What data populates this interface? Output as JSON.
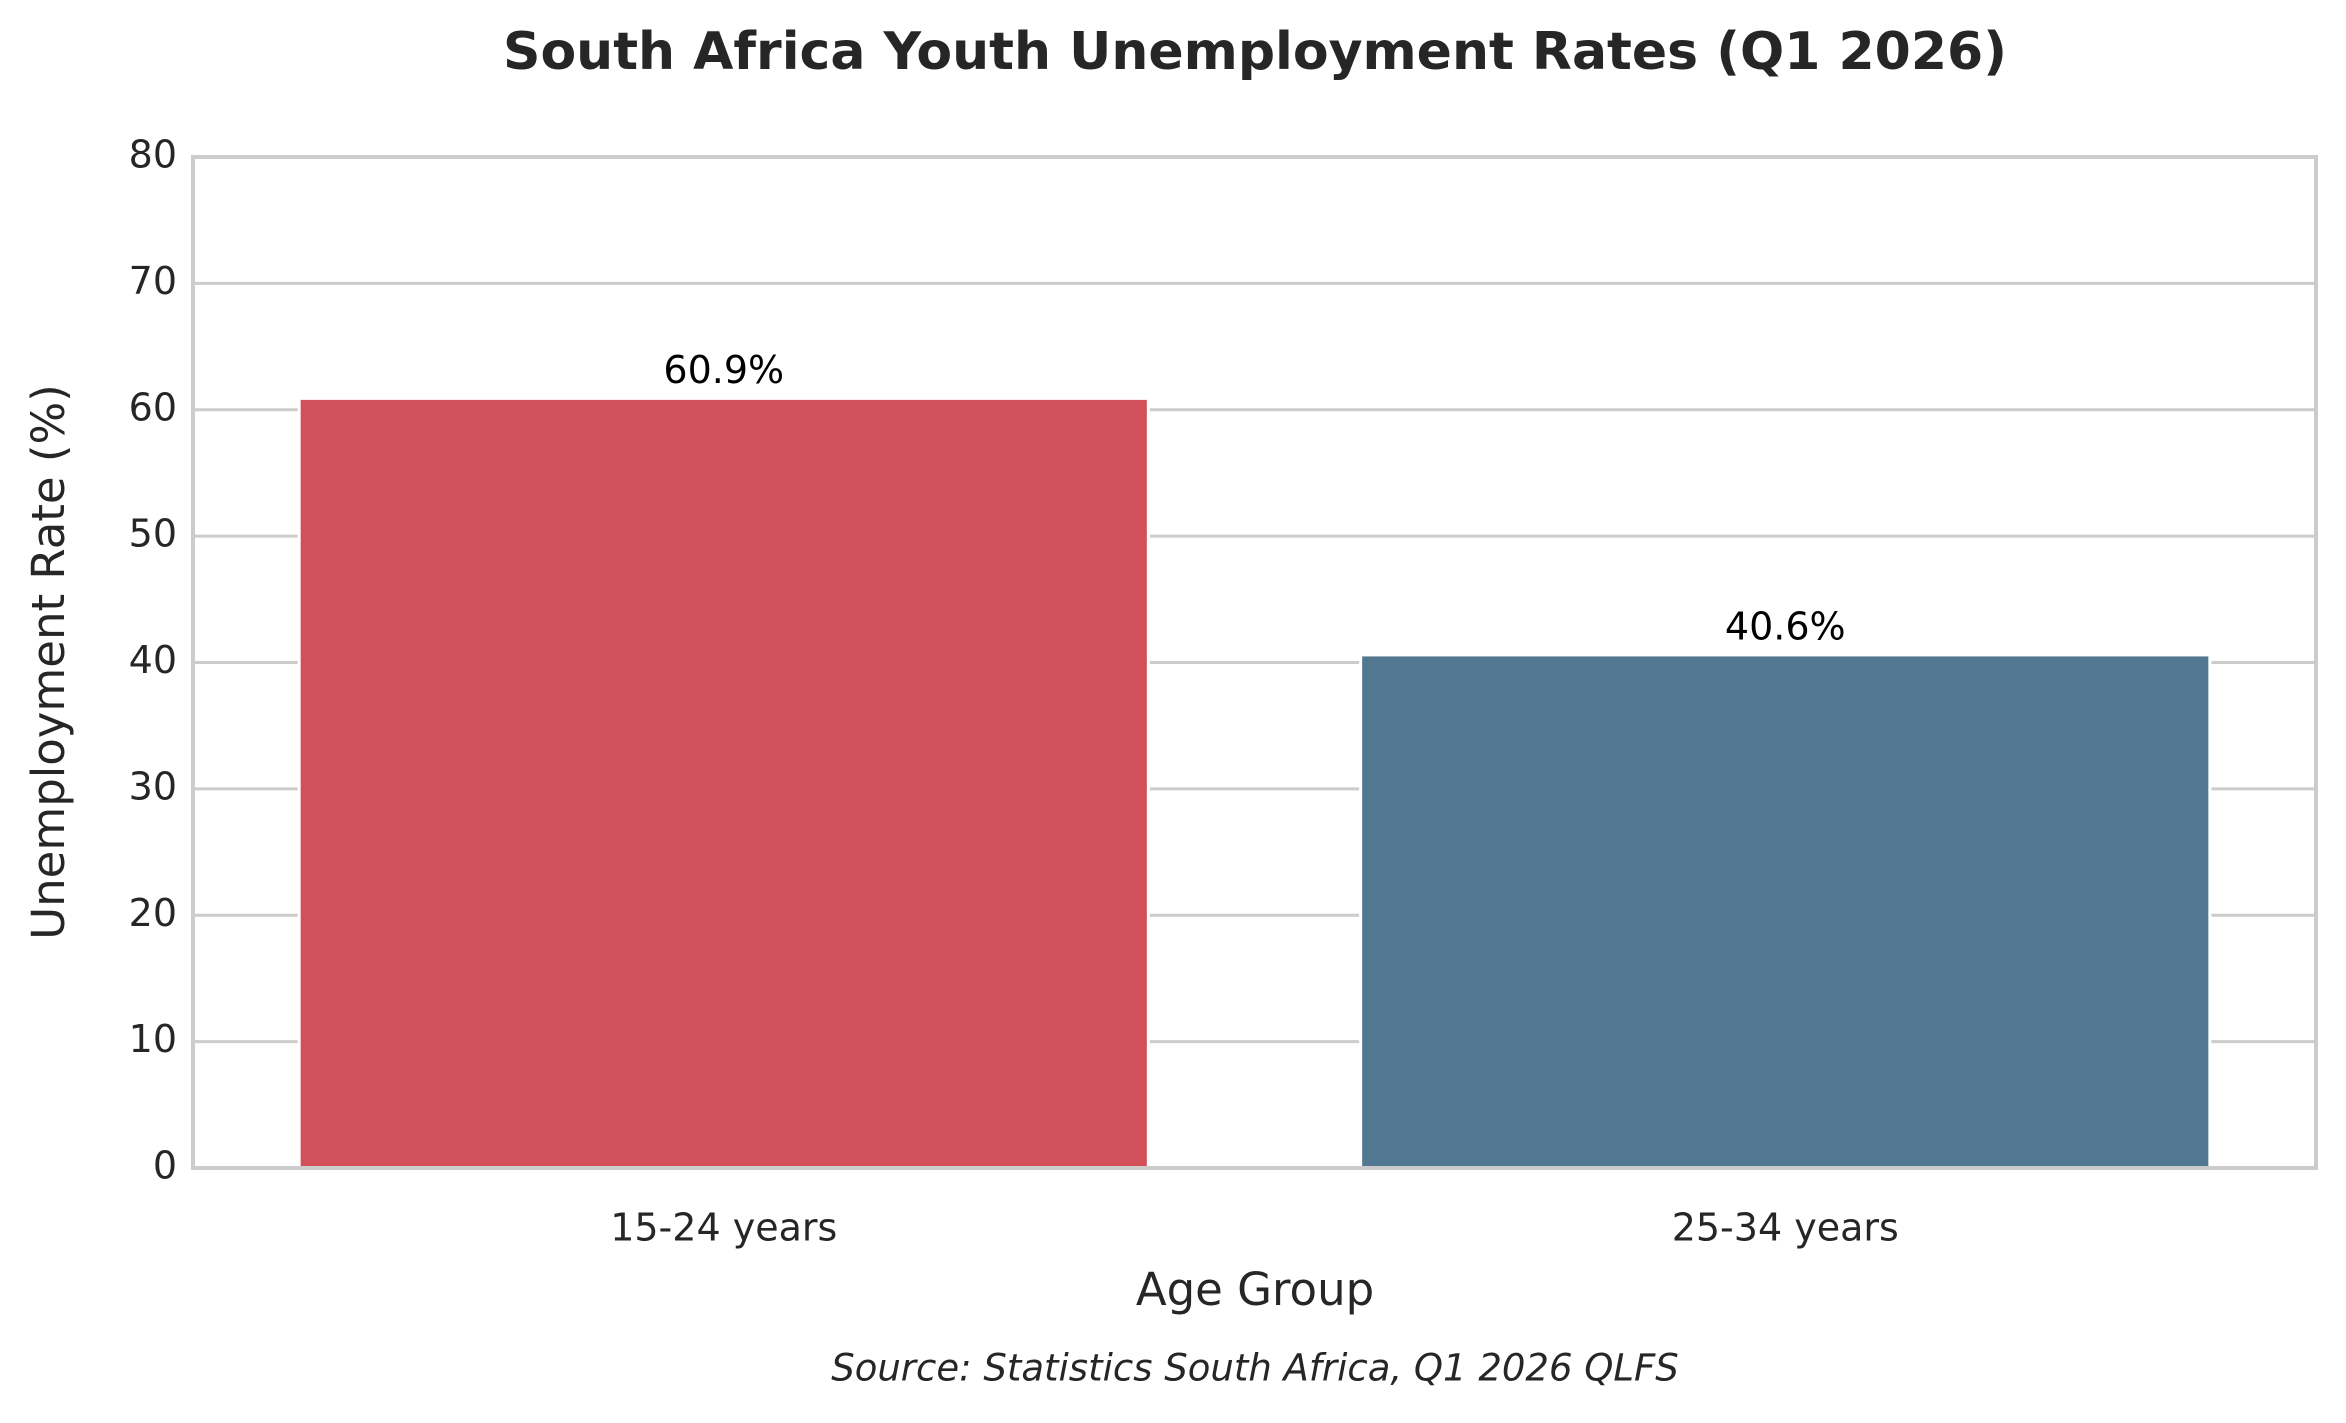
{
  "chart_data": {
    "type": "bar",
    "title": "South Africa Youth Unemployment Rates (Q1 2026)",
    "x_label": "Age Group",
    "y_label": "Unemployment Rate (%)",
    "source": "Source: Statistics South Africa, Q1 2026 QLFS",
    "categories": [
      "15-24 years",
      "25-34 years"
    ],
    "values": [
      60.9,
      40.6
    ],
    "value_labels": [
      "60.9%",
      "40.6%"
    ],
    "colors": [
      "#d1505a",
      "#527891"
    ],
    "ylim": [
      0,
      80
    ],
    "yticks": [
      0,
      10,
      20,
      30,
      40,
      50,
      60,
      70,
      80
    ],
    "grid": true
  }
}
